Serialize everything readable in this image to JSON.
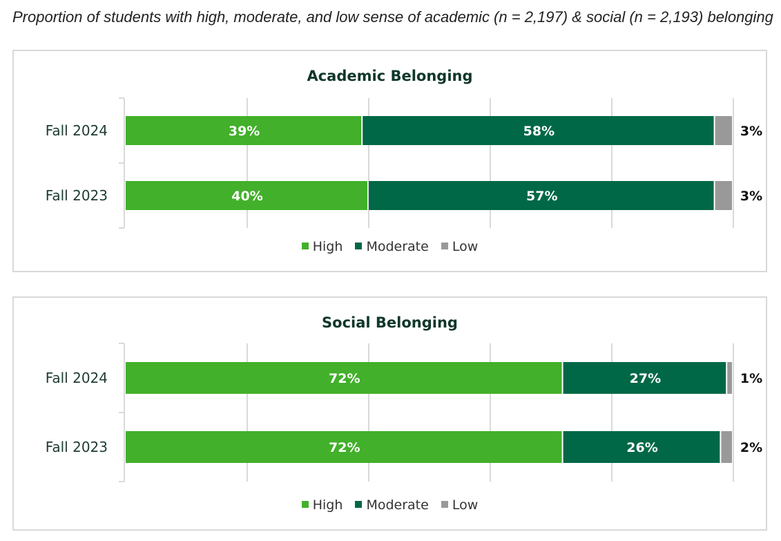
{
  "caption": "Proportion of students with high, moderate, and low sense of academic (n = 2,197) &  social (n = 2,193) belonging",
  "chart_data": [
    {
      "type": "bar",
      "orientation": "horizontal-stacked-100",
      "title": "Academic Belonging",
      "categories": [
        "Fall 2024",
        "Fall 2023"
      ],
      "series": [
        {
          "name": "High",
          "values": [
            39,
            40
          ],
          "labels": [
            "39%",
            "40%"
          ],
          "color": "#42b02a"
        },
        {
          "name": "Moderate",
          "values": [
            58,
            57
          ],
          "labels": [
            "58%",
            "57%"
          ],
          "color": "#006847"
        },
        {
          "name": "Low",
          "values": [
            3,
            3
          ],
          "labels": [
            "3%",
            "3%"
          ],
          "color": "#999999"
        }
      ],
      "xlim": [
        0,
        100
      ],
      "grid": true,
      "legend": "bottom"
    },
    {
      "type": "bar",
      "orientation": "horizontal-stacked-100",
      "title": "Social Belonging",
      "categories": [
        "Fall 2024",
        "Fall 2023"
      ],
      "series": [
        {
          "name": "High",
          "values": [
            72,
            72
          ],
          "labels": [
            "72%",
            "72%"
          ],
          "color": "#42b02a"
        },
        {
          "name": "Moderate",
          "values": [
            27,
            26
          ],
          "labels": [
            "27%",
            "26%"
          ],
          "color": "#006847"
        },
        {
          "name": "Low",
          "values": [
            1,
            2
          ],
          "labels": [
            "1%",
            "2%"
          ],
          "color": "#999999"
        }
      ],
      "xlim": [
        0,
        100
      ],
      "grid": true,
      "legend": "bottom"
    }
  ]
}
